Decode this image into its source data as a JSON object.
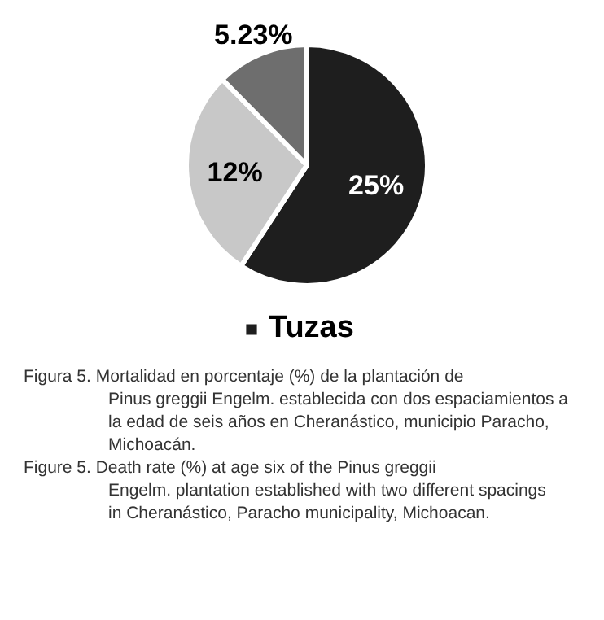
{
  "chart_data": {
    "type": "pie",
    "categories": [
      "Tuzas",
      null,
      null
    ],
    "values": [
      25,
      12,
      5.23
    ],
    "colors": [
      "#1e1e1e",
      "#c8c8c8",
      "#6e6e6e"
    ],
    "value_labels": [
      "25%",
      "12%",
      "5.23%"
    ],
    "legend": "bottom",
    "annotations": [
      "Figura 5. Mortalidad en porcentaje (%) de la plantación de Pinus greggii Engelm. establecida con dos espaciamientos a la edad de seis años en Cheranástico, municipio Paracho, Michoacán.",
      "Figure 5. Death rate (%) at age six of the Pinus greggii Engelm. plantation established with two different spacings in Cheranástico, Paracho municipality, Michoacan."
    ]
  }
}
